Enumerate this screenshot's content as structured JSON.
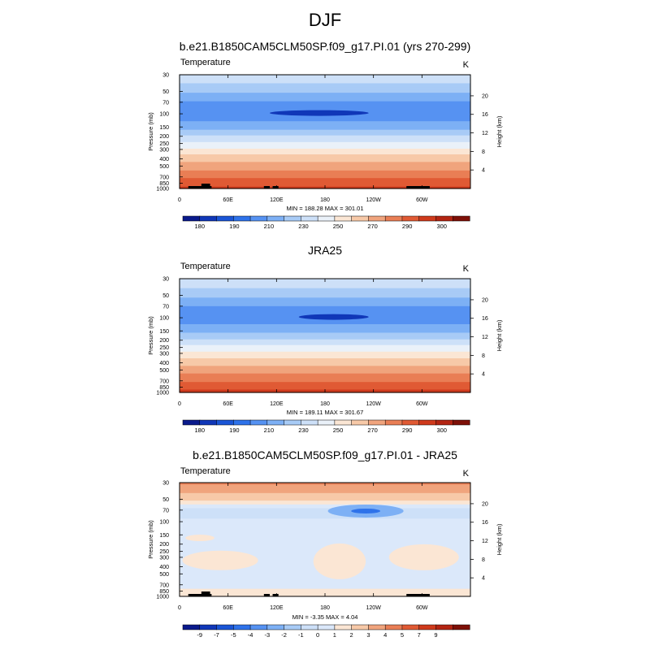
{
  "page": {
    "title": "DJF"
  },
  "colors": {
    "temperature": [
      "#0a1a8c",
      "#1037b8",
      "#1a55d6",
      "#2e72ea",
      "#5692f2",
      "#7db0f5",
      "#a8cbf6",
      "#cde0f8",
      "#eaf1f9",
      "#fbe6d4",
      "#f7c9a8",
      "#f0a47d",
      "#e97e55",
      "#e05a34",
      "#cf3a1c",
      "#b32412",
      "#7e1008"
    ],
    "difference": [
      "#0a1a8c",
      "#1037b8",
      "#1a55d6",
      "#2e72ea",
      "#5692f2",
      "#7db0f5",
      "#a8cbf6",
      "#cde0f8",
      "#dbe8fa",
      "#fbe6d4",
      "#f7c9a8",
      "#f0a47d",
      "#e97e55",
      "#e05a34",
      "#cf3a1c",
      "#b32412",
      "#7e1008"
    ]
  },
  "chart_data": [
    {
      "type": "heatmap",
      "title": "b.e21.B1850CAM5CLM50SP.f09_g17.PI.01 (yrs 270-299)",
      "variable_label": "Temperature",
      "units": "K",
      "ylabel": "Pressure (mb)",
      "y2label": "Height (km)",
      "x_ticks": [
        "0",
        "60E",
        "120E",
        "180",
        "120W",
        "60W"
      ],
      "y_ticks": [
        "30",
        "50",
        "70",
        "100",
        "150",
        "200",
        "250",
        "300",
        "400",
        "500",
        "700",
        "850",
        "1000"
      ],
      "y2_ticks": [
        "20",
        "16",
        "12",
        "8",
        "4"
      ],
      "stats": "MIN = 188.28   MAX = 301.01",
      "colorbar_labels": [
        "180",
        "190",
        "210",
        "230",
        "250",
        "270",
        "290",
        "300"
      ],
      "profile": [
        [
          30,
          228
        ],
        [
          50,
          212
        ],
        [
          70,
          199
        ],
        [
          100,
          193
        ],
        [
          150,
          206
        ],
        [
          200,
          221
        ],
        [
          250,
          232
        ],
        [
          300,
          242
        ],
        [
          400,
          256
        ],
        [
          500,
          264
        ],
        [
          700,
          278
        ],
        [
          850,
          286
        ],
        [
          1000,
          293
        ]
      ],
      "levels": [
        175,
        180,
        185,
        190,
        200,
        210,
        220,
        230,
        240,
        250,
        260,
        270,
        280,
        290,
        295,
        300
      ]
    },
    {
      "type": "heatmap",
      "title": "JRA25",
      "variable_label": "Temperature",
      "units": "K",
      "ylabel": "Pressure (mb)",
      "y2label": "Height (km)",
      "x_ticks": [
        "0",
        "60E",
        "120E",
        "180",
        "120W",
        "60W"
      ],
      "y_ticks": [
        "30",
        "50",
        "70",
        "100",
        "150",
        "200",
        "250",
        "300",
        "400",
        "500",
        "700",
        "850",
        "1000"
      ],
      "y2_ticks": [
        "20",
        "16",
        "12",
        "8",
        "4"
      ],
      "stats": "MIN = 189.11   MAX = 301.67",
      "colorbar_labels": [
        "180",
        "190",
        "210",
        "230",
        "250",
        "270",
        "290",
        "300"
      ],
      "profile": [
        [
          30,
          229
        ],
        [
          50,
          213
        ],
        [
          70,
          200
        ],
        [
          100,
          194
        ],
        [
          150,
          207
        ],
        [
          200,
          222
        ],
        [
          250,
          233
        ],
        [
          300,
          243
        ],
        [
          400,
          257
        ],
        [
          500,
          265
        ],
        [
          700,
          279
        ],
        [
          850,
          287
        ],
        [
          1000,
          294
        ]
      ],
      "levels": [
        175,
        180,
        185,
        190,
        200,
        210,
        220,
        230,
        240,
        250,
        260,
        270,
        280,
        290,
        295,
        300
      ]
    },
    {
      "type": "heatmap",
      "title": "b.e21.B1850CAM5CLM50SP.f09_g17.PI.01 - JRA25",
      "variable_label": "Temperature",
      "units": "K",
      "ylabel": "Pressure (mb)",
      "y2label": "Height (km)",
      "x_ticks": [
        "0",
        "60E",
        "120E",
        "180",
        "120W",
        "60W"
      ],
      "y_ticks": [
        "30",
        "50",
        "70",
        "100",
        "150",
        "200",
        "250",
        "300",
        "400",
        "500",
        "700",
        "850",
        "1000"
      ],
      "y2_ticks": [
        "20",
        "16",
        "12",
        "8",
        "4"
      ],
      "stats": "MIN = -3.35   MAX =  4.04",
      "colorbar_labels": [
        "-9",
        "-7",
        "-5",
        "-4",
        "-3",
        "-2",
        "-1",
        "0",
        "1",
        "2",
        "3",
        "4",
        "5",
        "7",
        "9"
      ],
      "profile": [
        [
          30,
          3.2
        ],
        [
          50,
          1.3
        ],
        [
          70,
          -1.6
        ],
        [
          100,
          -0.8
        ],
        [
          150,
          -0.3
        ],
        [
          200,
          -0.2
        ],
        [
          300,
          -0.3
        ],
        [
          500,
          -0.3
        ],
        [
          700,
          -0.4
        ],
        [
          850,
          0.2
        ],
        [
          1000,
          0.1
        ]
      ],
      "levels": [
        -10,
        -9,
        -7,
        -5,
        -4,
        -3,
        -2,
        -1,
        0,
        1,
        2,
        3,
        4,
        5,
        7,
        9
      ]
    }
  ]
}
